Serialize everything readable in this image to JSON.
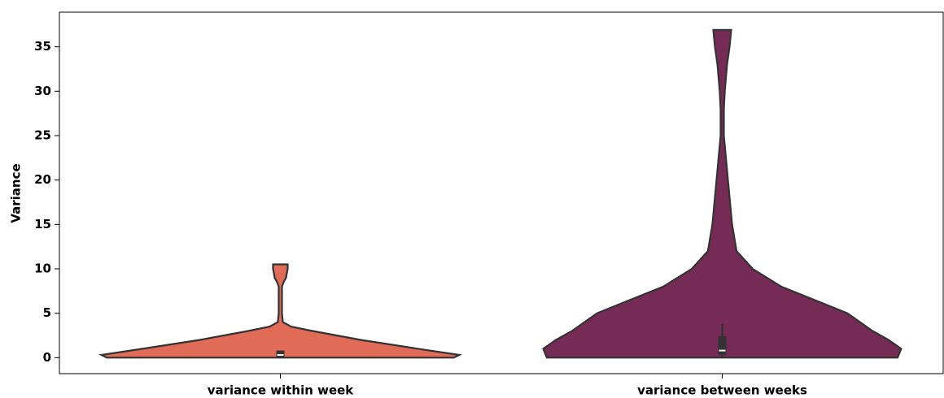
{
  "chart_data": {
    "type": "violin",
    "ylabel": "Variance",
    "categories": [
      "variance within week",
      "variance between weeks"
    ],
    "ylim": [
      -1.8,
      38.9
    ],
    "yticks": [
      0,
      5,
      10,
      15,
      20,
      25,
      30,
      35
    ],
    "violins": [
      {
        "color": "#e06c57",
        "density": {
          "y": [
            0,
            0.3,
            1,
            2,
            3,
            3.5,
            4,
            5,
            6,
            7,
            8,
            8.5,
            9,
            9.5,
            10,
            10.5
          ],
          "width": [
            0.97,
            1,
            0.77,
            0.45,
            0.18,
            0.06,
            0.014,
            0.009,
            0.009,
            0.009,
            0.009,
            0.018,
            0.032,
            0.036,
            0.041,
            0.041
          ]
        },
        "q1": 0,
        "median": 0.3,
        "q3": 0.8,
        "whisker_low": 0,
        "whisker_high": 0.8
      },
      {
        "color": "#762a56",
        "density": {
          "y": [
            0,
            1,
            2,
            3,
            5,
            8,
            10,
            12,
            15,
            20,
            25,
            28,
            30,
            33,
            35,
            36.9
          ],
          "width": [
            0.98,
            1,
            0.93,
            0.84,
            0.7,
            0.33,
            0.17,
            0.08,
            0.055,
            0.032,
            0.009,
            0.009,
            0.014,
            0.027,
            0.041,
            0.05
          ]
        },
        "q1": 0.3,
        "median": 0.8,
        "q3": 2.4,
        "whisker_low": 0,
        "whisker_high": 3.8
      }
    ]
  }
}
